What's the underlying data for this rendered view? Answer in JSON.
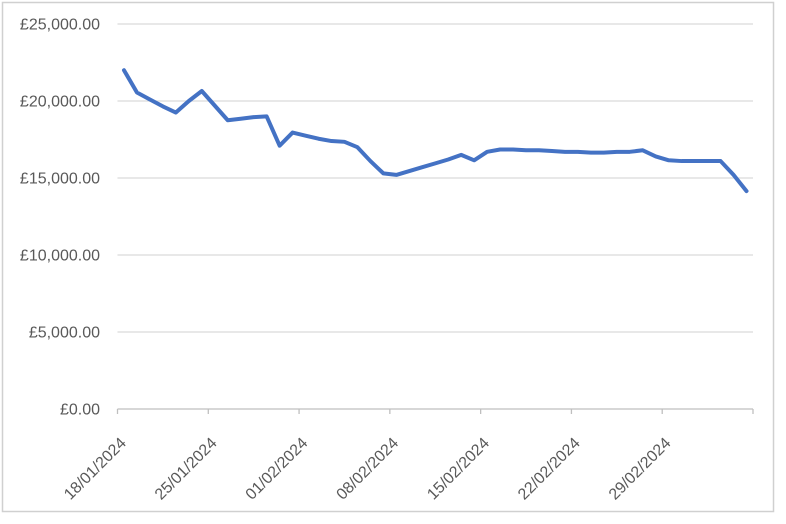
{
  "chart_data": {
    "type": "line",
    "title": "",
    "xlabel": "",
    "ylabel": "",
    "x": [
      "18/01/2024",
      "19/01/2024",
      "20/01/2024",
      "21/01/2024",
      "22/01/2024",
      "23/01/2024",
      "24/01/2024",
      "25/01/2024",
      "26/01/2024",
      "27/01/2024",
      "28/01/2024",
      "29/01/2024",
      "30/01/2024",
      "31/01/2024",
      "01/02/2024",
      "02/02/2024",
      "03/02/2024",
      "04/02/2024",
      "05/02/2024",
      "06/02/2024",
      "07/02/2024",
      "08/02/2024",
      "09/02/2024",
      "10/02/2024",
      "11/02/2024",
      "12/02/2024",
      "13/02/2024",
      "14/02/2024",
      "15/02/2024",
      "16/02/2024",
      "17/02/2024",
      "18/02/2024",
      "19/02/2024",
      "20/02/2024",
      "21/02/2024",
      "22/02/2024",
      "23/02/2024",
      "24/02/2024",
      "25/02/2024",
      "26/02/2024",
      "27/02/2024",
      "28/02/2024",
      "29/02/2024",
      "01/03/2024",
      "02/03/2024",
      "03/03/2024",
      "04/03/2024",
      "05/03/2024",
      "06/03/2024"
    ],
    "series": [
      {
        "name": "",
        "color": "#4472C4",
        "values": [
          22000,
          20550,
          20100,
          19650,
          19250,
          20000,
          20650,
          19700,
          18750,
          18850,
          18950,
          19000,
          17100,
          17950,
          17750,
          17550,
          17400,
          17350,
          17000,
          16100,
          15300,
          15200,
          15450,
          15700,
          15950,
          16200,
          16500,
          16150,
          16700,
          16850,
          16850,
          16800,
          16800,
          16750,
          16700,
          16700,
          16650,
          16650,
          16700,
          16700,
          16800,
          16400,
          16150,
          16100,
          16100,
          16100,
          16100,
          15200,
          14150
        ]
      }
    ],
    "ylim": [
      0,
      25000
    ],
    "ytick_step": 5000,
    "ytick_labels": [
      "£0.00",
      "£5,000.00",
      "£10,000.00",
      "£15,000.00",
      "£20,000.00",
      "£25,000.00"
    ],
    "xtick_labels": [
      "18/01/2024",
      "25/01/2024",
      "01/02/2024",
      "08/02/2024",
      "15/02/2024",
      "22/02/2024",
      "29/02/2024"
    ],
    "xtick_interval": 7,
    "grid": true,
    "legend": false
  },
  "styles": {
    "line_color": "#4472C4",
    "grid_color": "#D9D9D9",
    "axis_color": "#BFBFBF",
    "label_color": "#595959",
    "border_color": "#D0D0D0",
    "background": "#FFFFFF"
  }
}
